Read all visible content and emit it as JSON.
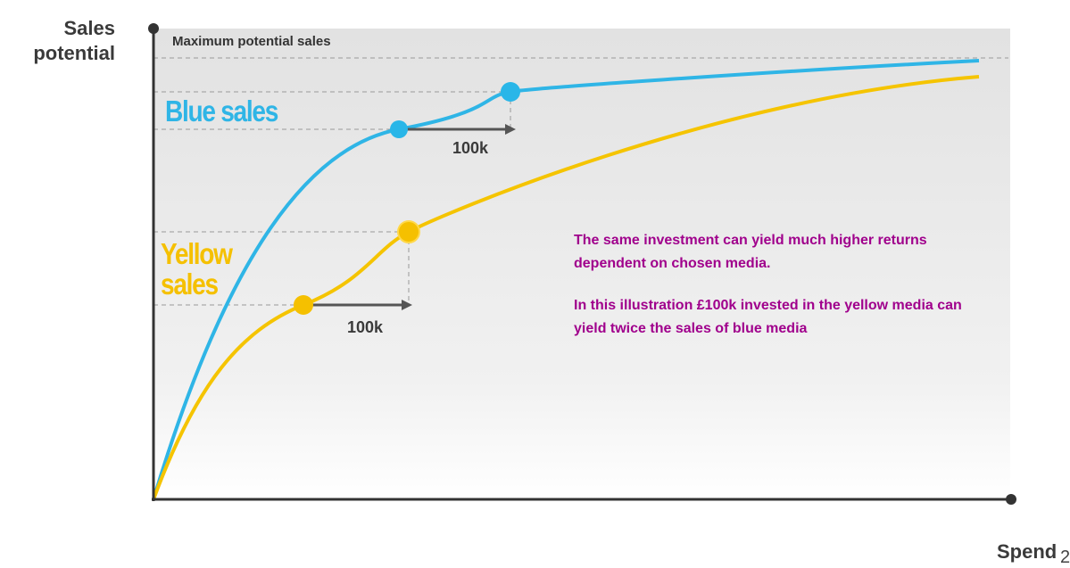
{
  "axes": {
    "y_label": [
      "Sales",
      "potential"
    ],
    "x_label": "Spend"
  },
  "reference_line": "Maximum potential sales",
  "curves": [
    {
      "label": "Blue sales",
      "increment": "100k"
    },
    {
      "label": "Yellow sales",
      "increment": "100k"
    }
  ],
  "note": [
    "The same investment can yield much higher returns dependent on chosen media.",
    "In this illustration £100k invested in the yellow media can yield twice the sales of blue media"
  ],
  "page_number": "2"
}
